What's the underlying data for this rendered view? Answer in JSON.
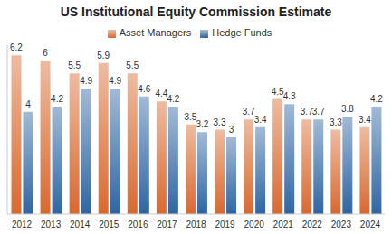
{
  "chart_data": {
    "type": "bar",
    "title": "US Institutional Equity Commission Estimate",
    "categories": [
      "2012",
      "2013",
      "2014",
      "2015",
      "2016",
      "2017",
      "2018",
      "2019",
      "2020",
      "2021",
      "2022",
      "2023",
      "2024"
    ],
    "series": [
      {
        "name": "Asset Managers",
        "color": "#d9692e",
        "values": [
          6.2,
          6,
          5.5,
          5.9,
          5.5,
          4.4,
          3.5,
          3.3,
          3.7,
          4.5,
          3.7,
          3.3,
          3.4
        ]
      },
      {
        "name": "Hedge Funds",
        "color": "#2f66a3",
        "values": [
          4,
          4.2,
          4.9,
          4.9,
          4.6,
          4.2,
          3.2,
          3,
          3.4,
          4.3,
          3.7,
          3.8,
          4.2
        ]
      }
    ],
    "ylim": [
      0,
      6.6
    ],
    "grid": false,
    "legend": "top",
    "data_labels": true,
    "tick_labels": "x"
  }
}
